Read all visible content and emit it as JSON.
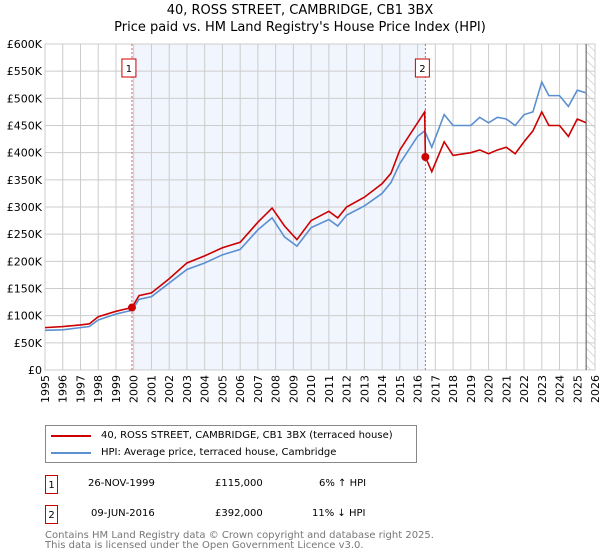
{
  "chart_data": {
    "type": "line",
    "title": "40, ROSS STREET, CAMBRIDGE, CB1 3BX",
    "subtitle": "Price paid vs. HM Land Registry's House Price Index (HPI)",
    "xlim": [
      1995,
      2026
    ],
    "ylim": [
      0,
      600000
    ],
    "yticks": [
      0,
      50000,
      100000,
      150000,
      200000,
      250000,
      300000,
      350000,
      400000,
      450000,
      500000,
      550000,
      600000
    ],
    "ytick_labels": [
      "£0",
      "£50K",
      "£100K",
      "£150K",
      "£200K",
      "£250K",
      "£300K",
      "£350K",
      "£400K",
      "£450K",
      "£500K",
      "£550K",
      "£600K"
    ],
    "xticks": [
      1995,
      1996,
      1997,
      1998,
      1999,
      2000,
      2001,
      2002,
      2003,
      2004,
      2005,
      2006,
      2007,
      2008,
      2009,
      2010,
      2011,
      2012,
      2013,
      2014,
      2015,
      2016,
      2017,
      2018,
      2019,
      2020,
      2021,
      2022,
      2023,
      2024,
      2025,
      2026
    ],
    "grid": true,
    "series": [
      {
        "name": "40, ROSS STREET, CAMBRIDGE, CB1 3BX (terraced house)",
        "color": "#cc0000",
        "x": [
          1995,
          1996,
          1997,
          1997.5,
          1998,
          1999,
          1999.9,
          2000.3,
          2001,
          2002,
          2003,
          2004,
          2005,
          2006,
          2007,
          2007.8,
          2008.5,
          2009.2,
          2010,
          2011,
          2011.5,
          2012,
          2013,
          2014,
          2014.5,
          2015,
          2016,
          2016.4,
          2016.44,
          2016.8,
          2017.5,
          2018,
          2019,
          2019.5,
          2020,
          2020.5,
          2021,
          2021.5,
          2022,
          2022.5,
          2023,
          2023.4,
          2024,
          2024.5,
          2025,
          2025.5
        ],
        "y": [
          78000,
          80000,
          83000,
          85000,
          98000,
          108000,
          115000,
          137000,
          142000,
          168000,
          197000,
          210000,
          225000,
          235000,
          272000,
          298000,
          265000,
          240000,
          275000,
          292000,
          280000,
          300000,
          318000,
          343000,
          362000,
          405000,
          455000,
          475000,
          392000,
          365000,
          420000,
          395000,
          400000,
          405000,
          398000,
          405000,
          410000,
          398000,
          420000,
          440000,
          475000,
          450000,
          450000,
          430000,
          462000,
          455000
        ]
      },
      {
        "name": "HPI: Average price, terraced house, Cambridge",
        "color": "#5b8fd0",
        "x": [
          1995,
          1996,
          1997,
          1997.5,
          1998,
          1999,
          1999.9,
          2000.3,
          2001,
          2002,
          2003,
          2004,
          2005,
          2006,
          2007,
          2007.8,
          2008.5,
          2009.2,
          2010,
          2011,
          2011.5,
          2012,
          2013,
          2014,
          2014.5,
          2015,
          2016,
          2016.4,
          2016.8,
          2017.5,
          2018,
          2019,
          2019.5,
          2020,
          2020.5,
          2021,
          2021.5,
          2022,
          2022.5,
          2023,
          2023.4,
          2024,
          2024.5,
          2025,
          2025.5
        ],
        "y": [
          73000,
          74000,
          78000,
          80000,
          92000,
          103000,
          110000,
          130000,
          135000,
          160000,
          185000,
          197000,
          212000,
          222000,
          258000,
          280000,
          245000,
          228000,
          262000,
          277000,
          265000,
          285000,
          302000,
          325000,
          345000,
          380000,
          430000,
          440000,
          410000,
          470000,
          450000,
          450000,
          465000,
          455000,
          465000,
          462000,
          450000,
          470000,
          475000,
          530000,
          505000,
          505000,
          485000,
          515000,
          510000
        ]
      }
    ],
    "sales": [
      {
        "n": "1",
        "x": 1999.9,
        "y": 115000,
        "date": "26-NOV-1999",
        "price": "£115,000",
        "hpi": "6% ↑ HPI"
      },
      {
        "n": "2",
        "x": 2016.44,
        "y": 392000,
        "date": "09-JUN-2016",
        "price": "£392,000",
        "hpi": "11% ↓ HPI"
      }
    ],
    "shaded_range": [
      1999.9,
      2016.44
    ],
    "forecast_from": 2025.5
  },
  "footer": [
    "Contains HM Land Registry data © Crown copyright and database right 2025.",
    "This data is licensed under the Open Government Licence v3.0."
  ]
}
